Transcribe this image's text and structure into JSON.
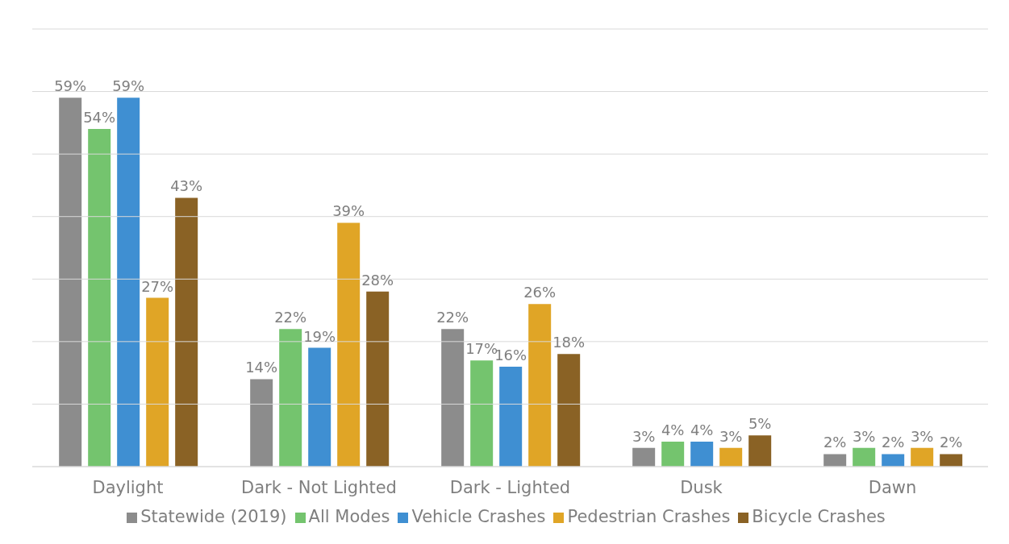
{
  "chart_data": {
    "type": "bar",
    "categories": [
      "Daylight",
      "Dark - Not Lighted",
      "Dark - Lighted",
      "Dusk",
      "Dawn"
    ],
    "series": [
      {
        "name": "Statewide (2019)",
        "color": "#8c8c8c",
        "values": [
          59,
          14,
          22,
          3,
          2
        ],
        "value_labels": [
          "59%",
          "14%",
          "22%",
          "3%",
          "2%"
        ]
      },
      {
        "name": "All Modes",
        "color": "#74c46e",
        "values": [
          54,
          22,
          17,
          4,
          3
        ],
        "value_labels": [
          "54%",
          "22%",
          "17%",
          "4%",
          "3%"
        ]
      },
      {
        "name": "Vehicle Crashes",
        "color": "#3f8fd2",
        "values": [
          59,
          19,
          16,
          4,
          2
        ],
        "value_labels": [
          "59%",
          "19%",
          "16%",
          "4%",
          "2%"
        ]
      },
      {
        "name": "Pedestrian Crashes",
        "color": "#e0a526",
        "values": [
          27,
          39,
          26,
          3,
          3
        ],
        "value_labels": [
          "27%",
          "39%",
          "26%",
          "3%",
          "3%"
        ]
      },
      {
        "name": "Bicycle Crashes",
        "color": "#8a6225",
        "values": [
          43,
          28,
          18,
          5,
          2
        ],
        "value_labels": [
          "43%",
          "28%",
          "18%",
          "5%",
          "2%"
        ]
      }
    ],
    "ylim": [
      0,
      70
    ],
    "yticks": [
      {
        "value": 0,
        "label": null
      },
      {
        "value": 10,
        "label": null
      },
      {
        "value": 20,
        "label": null
      },
      {
        "value": 30,
        "label": null
      },
      {
        "value": 40,
        "label": null
      },
      {
        "value": 50,
        "label": null
      },
      {
        "value": 60,
        "label": null
      },
      {
        "value": 70,
        "label": null
      }
    ],
    "tick_labels": "x",
    "grid": "y",
    "legend": "bottom"
  }
}
